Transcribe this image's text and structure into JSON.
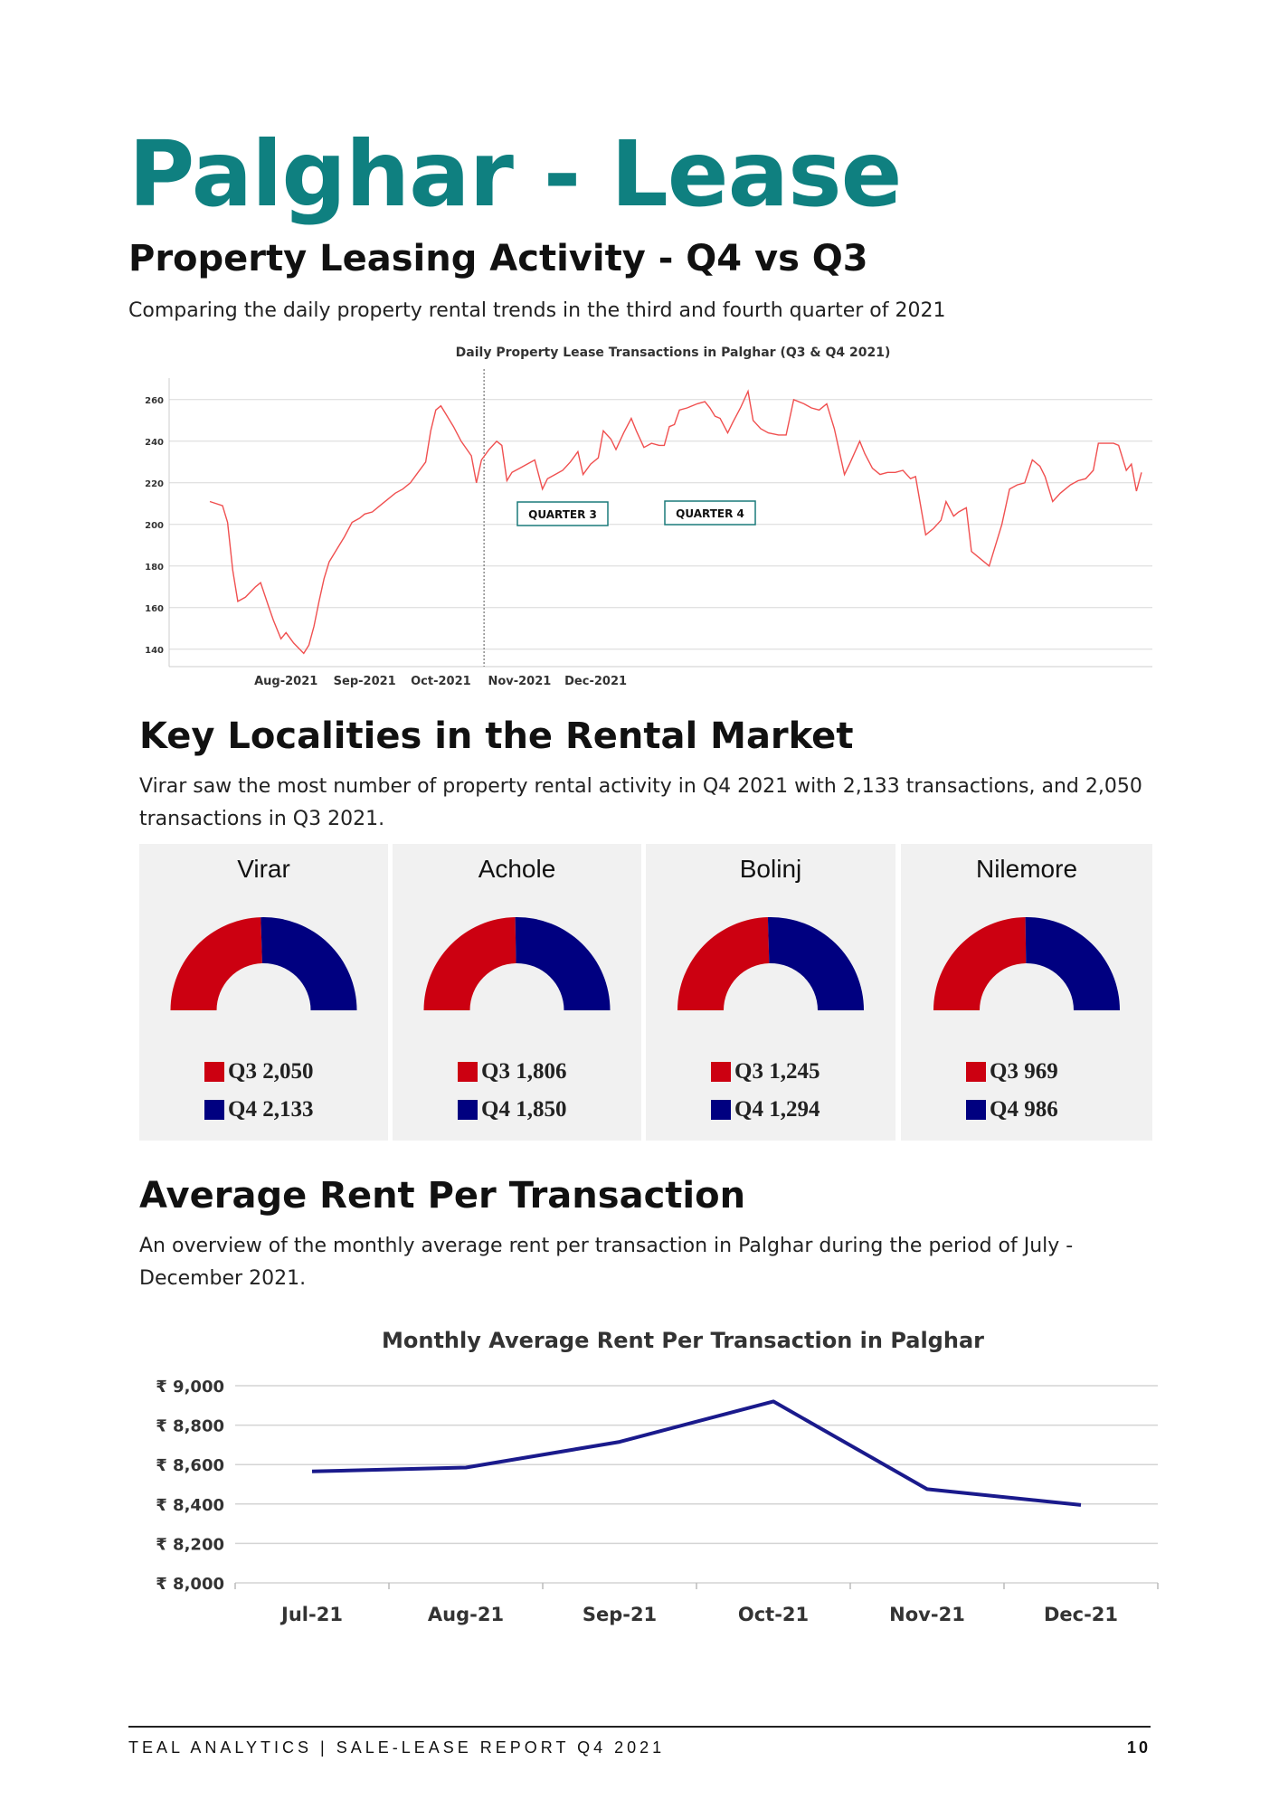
{
  "page": {
    "title": "Palghar - Lease",
    "footer_left": "TEAL ANALYTICS | SALE-LEASE REPORT Q4 2021",
    "page_number": "10"
  },
  "sections": {
    "leasing": {
      "heading": "Property Leasing Activity - Q4 vs Q3",
      "text": "Comparing the daily property rental trends in the third and fourth quarter of 2021"
    },
    "localities": {
      "heading": "Key Localities in the Rental Market",
      "text": "Virar saw the most number of property rental activity in Q4 2021 with 2,133 transactions, and 2,050 transactions in Q3 2021."
    },
    "rent": {
      "heading": "Average Rent Per Transaction",
      "text": "An overview of the monthly average rent per transaction in Palghar during the period of July - December 2021."
    }
  },
  "colors": {
    "title_teal": "#0f8080",
    "q3_red": "#cc0011",
    "q4_navy": "#000080",
    "daily_line": "#f05050",
    "rent_line": "#1a1a8c"
  },
  "chart_data": [
    {
      "type": "line",
      "title": "Daily Property Lease Transactions in Palghar (Q3 & Q4 2021)",
      "xlabel": "",
      "ylabel": "",
      "ylim": [
        136,
        266
      ],
      "yticks": [
        140,
        160,
        180,
        200,
        220,
        240,
        260
      ],
      "xtick_labels": [
        "Aug-2021",
        "Sep-2021",
        "Oct-2021",
        "Nov-2021",
        "Dec-2021"
      ],
      "grid": true,
      "annotations": [
        "QUARTER 3",
        "QUARTER 4"
      ],
      "divider_at_day": 109,
      "series": [
        {
          "values": [
            [
              1,
              211
            ],
            [
              6,
              209
            ],
            [
              8,
              201
            ],
            [
              10,
              178
            ],
            [
              12,
              163
            ],
            [
              15,
              165
            ],
            [
              19,
              170
            ],
            [
              21,
              172
            ],
            [
              24,
              161
            ],
            [
              26,
              154
            ],
            [
              29,
              145
            ],
            [
              31,
              148
            ],
            [
              34,
              143
            ],
            [
              38,
              138
            ],
            [
              40,
              142
            ],
            [
              42,
              151
            ],
            [
              44,
              163
            ],
            [
              46,
              174
            ],
            [
              48,
              182
            ],
            [
              51,
              188
            ],
            [
              54,
              194
            ],
            [
              57,
              201
            ],
            [
              60,
              203
            ],
            [
              62,
              205
            ],
            [
              65,
              206
            ],
            [
              68,
              209
            ],
            [
              71,
              212
            ],
            [
              74,
              215
            ],
            [
              77,
              217
            ],
            [
              80,
              220
            ],
            [
              83,
              225
            ],
            [
              86,
              230
            ],
            [
              88,
              245
            ],
            [
              90,
              255
            ],
            [
              92,
              257
            ],
            [
              94,
              253
            ],
            [
              97,
              247
            ],
            [
              100,
              240
            ],
            [
              104,
              233
            ],
            [
              106,
              220
            ],
            [
              108,
              231
            ],
            [
              111,
              236
            ],
            [
              114,
              240
            ],
            [
              116,
              238
            ],
            [
              118,
              221
            ],
            [
              120,
              225
            ],
            [
              123,
              227
            ],
            [
              126,
              229
            ],
            [
              129,
              231
            ],
            [
              132,
              217
            ],
            [
              134,
              222
            ],
            [
              137,
              224
            ],
            [
              140,
              226
            ],
            [
              143,
              230
            ],
            [
              146,
              235
            ],
            [
              148,
              224
            ],
            [
              151,
              229
            ],
            [
              154,
              232
            ],
            [
              156,
              245
            ],
            [
              159,
              241
            ],
            [
              161,
              236
            ],
            [
              164,
              244
            ],
            [
              167,
              251
            ],
            [
              169,
              245
            ],
            [
              172,
              237
            ],
            [
              175,
              239
            ],
            [
              178,
              238
            ],
            [
              180,
              238
            ],
            [
              182,
              247
            ],
            [
              184,
              248
            ],
            [
              186,
              255
            ],
            [
              189,
              256
            ],
            [
              193,
              258
            ],
            [
              196,
              259
            ],
            [
              198,
              256
            ],
            [
              200,
              252
            ],
            [
              202,
              251
            ],
            [
              205,
              244
            ],
            [
              207,
              249
            ],
            [
              210,
              256
            ],
            [
              213,
              264
            ],
            [
              215,
              250
            ],
            [
              218,
              246
            ],
            [
              221,
              244
            ],
            [
              225,
              243
            ],
            [
              228,
              243
            ],
            [
              231,
              260
            ],
            [
              235,
              258
            ],
            [
              238,
              256
            ],
            [
              241,
              255
            ],
            [
              244,
              258
            ],
            [
              247,
              246
            ],
            [
              251,
              224
            ],
            [
              253,
              229
            ],
            [
              257,
              240
            ],
            [
              259,
              234
            ],
            [
              262,
              227
            ],
            [
              265,
              224
            ],
            [
              268,
              225
            ],
            [
              271,
              225
            ],
            [
              274,
              226
            ],
            [
              277,
              222
            ],
            [
              279,
              223
            ],
            [
              283,
              195
            ],
            [
              286,
              198
            ],
            [
              289,
              202
            ],
            [
              291,
              211
            ],
            [
              294,
              204
            ],
            [
              296,
              206
            ],
            [
              299,
              208
            ],
            [
              301,
              187
            ],
            [
              304,
              184
            ],
            [
              308,
              180
            ],
            [
              313,
              200
            ],
            [
              316,
              217
            ],
            [
              319,
              219
            ],
            [
              322,
              220
            ],
            [
              325,
              231
            ],
            [
              328,
              228
            ],
            [
              330,
              223
            ],
            [
              333,
              211
            ],
            [
              336,
              215
            ],
            [
              340,
              219
            ],
            [
              343,
              221
            ],
            [
              346,
              222
            ],
            [
              349,
              226
            ],
            [
              351,
              239
            ],
            [
              354,
              239
            ],
            [
              357,
              239
            ],
            [
              359,
              238
            ],
            [
              362,
              226
            ],
            [
              364,
              229
            ],
            [
              366,
              216
            ],
            [
              368,
              225
            ]
          ]
        }
      ]
    },
    {
      "type": "pie",
      "title": "Virar",
      "series": [
        {
          "name": "Q3",
          "value": 2050,
          "label": "2,050"
        },
        {
          "name": "Q4",
          "value": 2133,
          "label": "2,133"
        }
      ]
    },
    {
      "type": "pie",
      "title": "Achole",
      "series": [
        {
          "name": "Q3",
          "value": 1806,
          "label": "1,806"
        },
        {
          "name": "Q4",
          "value": 1850,
          "label": "1,850"
        }
      ]
    },
    {
      "type": "pie",
      "title": "Bolinj",
      "series": [
        {
          "name": "Q3",
          "value": 1245,
          "label": "1,245"
        },
        {
          "name": "Q4",
          "value": 1294,
          "label": "1,294"
        }
      ]
    },
    {
      "type": "pie",
      "title": "Nilemore",
      "series": [
        {
          "name": "Q3",
          "value": 969,
          "label": "969"
        },
        {
          "name": "Q4",
          "value": 986,
          "label": "986"
        }
      ]
    },
    {
      "type": "line",
      "title": "Monthly Average Rent Per Transaction in Palghar",
      "xlabel": "",
      "ylabel": "",
      "categories": [
        "Jul-21",
        "Aug-21",
        "Sep-21",
        "Oct-21",
        "Nov-21",
        "Dec-21"
      ],
      "values": [
        8565,
        8585,
        8715,
        8920,
        8475,
        8395
      ],
      "ylim": [
        8000,
        9000
      ],
      "yticks": [
        8000,
        8200,
        8400,
        8600,
        8800,
        9000
      ],
      "ytick_labels": [
        "₹ 8,000",
        "₹ 8,200",
        "₹ 8,400",
        "₹ 8,600",
        "₹ 8,800",
        "₹ 9,000"
      ],
      "grid": true
    }
  ]
}
